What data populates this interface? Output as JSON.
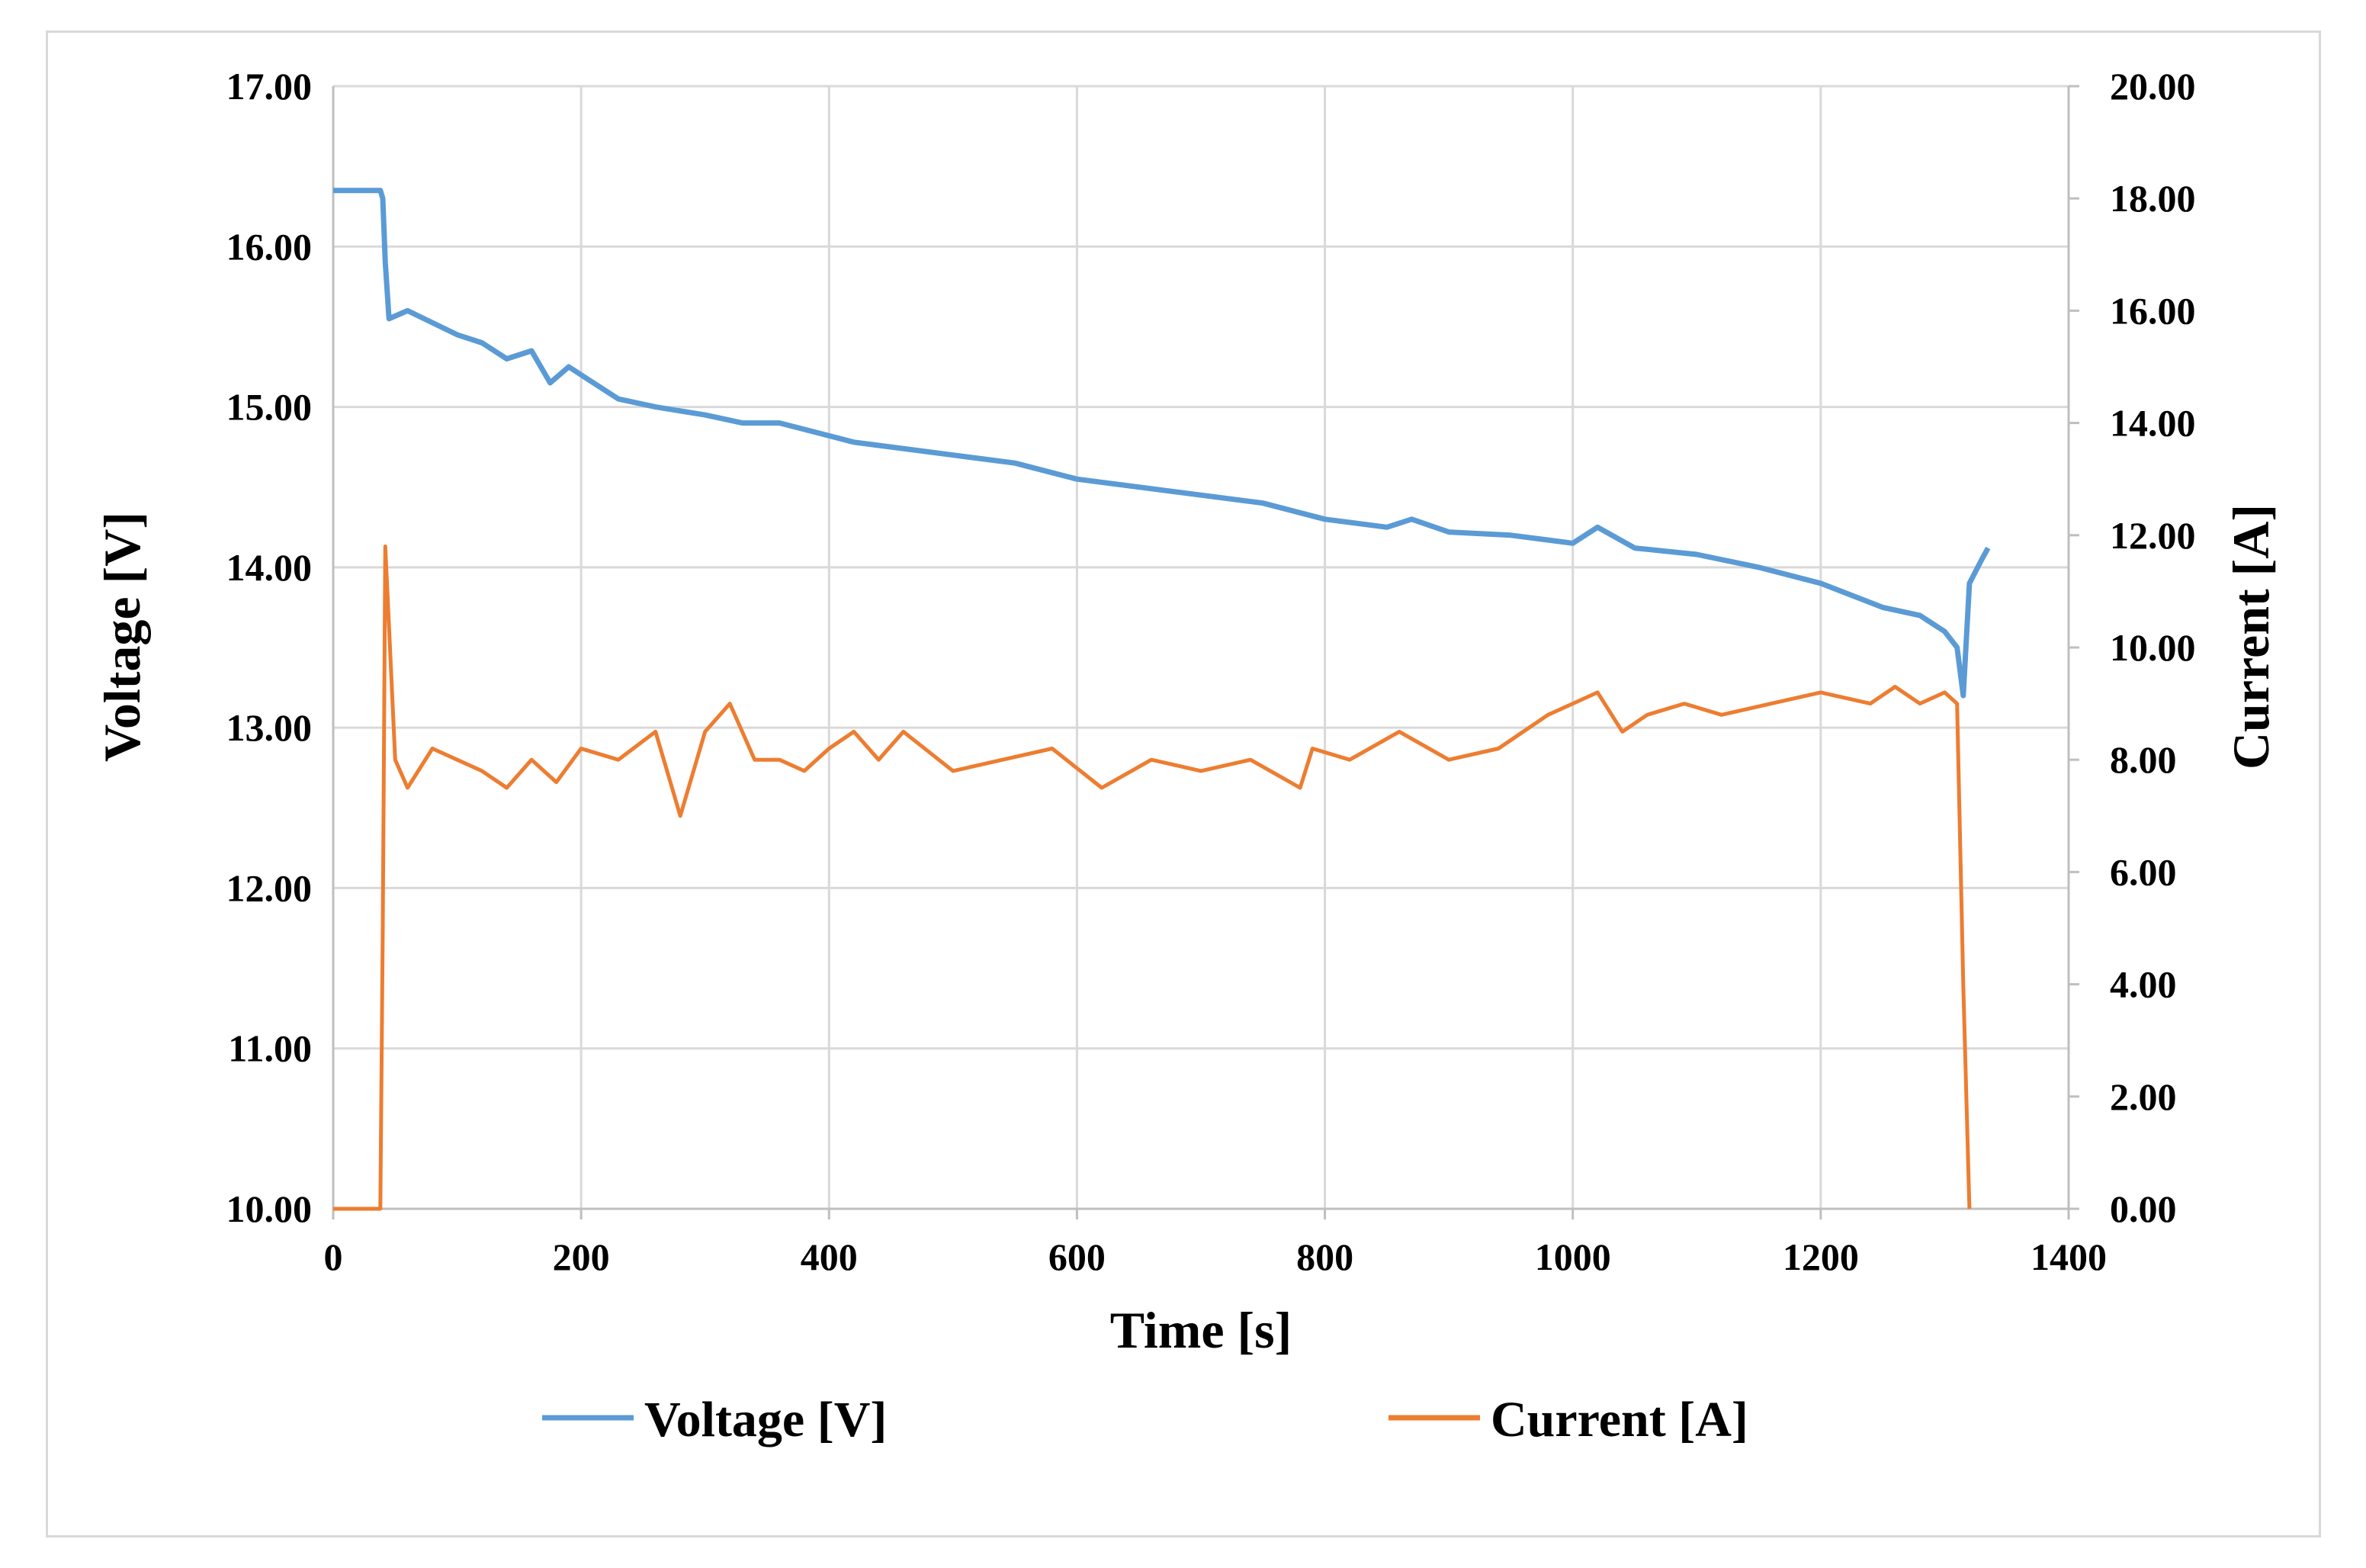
{
  "chart_data": {
    "type": "line",
    "title": "",
    "xlabel": "Time [s]",
    "ylabel_left": "Voltage [V]",
    "ylabel_right": "Current [A]",
    "xlim": [
      0,
      1400
    ],
    "ylim_left": [
      10,
      17
    ],
    "ylim_right": [
      0,
      20
    ],
    "x_ticks": [
      0,
      200,
      400,
      600,
      800,
      1000,
      1200,
      1400
    ],
    "x_tick_labels": [
      "0",
      "200",
      "400",
      "600",
      "800",
      "1000",
      "1200",
      "1400"
    ],
    "y_left_ticks": [
      10,
      11,
      12,
      13,
      14,
      15,
      16,
      17
    ],
    "y_left_tick_labels": [
      "10.00",
      "11.00",
      "12.00",
      "13.00",
      "14.00",
      "15.00",
      "16.00",
      "17.00"
    ],
    "y_right_ticks": [
      0,
      2,
      4,
      6,
      8,
      10,
      12,
      14,
      16,
      18,
      20
    ],
    "y_right_tick_labels": [
      "0.00",
      "2.00",
      "4.00",
      "6.00",
      "8.00",
      "10.00",
      "12.00",
      "14.00",
      "16.00",
      "18.00",
      "20.00"
    ],
    "grid": true,
    "legend_position": "bottom",
    "series": [
      {
        "name": "Voltage [V]",
        "axis": "left",
        "color": "#5B9BD5",
        "x": [
          0,
          38,
          40,
          42,
          45,
          60,
          100,
          120,
          140,
          160,
          175,
          190,
          200,
          230,
          260,
          300,
          330,
          360,
          400,
          420,
          450,
          500,
          550,
          600,
          650,
          700,
          750,
          800,
          850,
          870,
          900,
          950,
          1000,
          1020,
          1050,
          1100,
          1150,
          1200,
          1250,
          1280,
          1300,
          1310,
          1315,
          1320,
          1330,
          1335
        ],
        "values": [
          16.35,
          16.35,
          16.3,
          15.9,
          15.55,
          15.6,
          15.45,
          15.4,
          15.3,
          15.35,
          15.15,
          15.25,
          15.2,
          15.05,
          15.0,
          14.95,
          14.9,
          14.9,
          14.82,
          14.78,
          14.75,
          14.7,
          14.65,
          14.55,
          14.5,
          14.45,
          14.4,
          14.3,
          14.25,
          14.3,
          14.22,
          14.2,
          14.15,
          14.25,
          14.12,
          14.08,
          14.0,
          13.9,
          13.75,
          13.7,
          13.6,
          13.5,
          13.2,
          13.9,
          14.05,
          14.12
        ]
      },
      {
        "name": "Current [A]",
        "axis": "right",
        "color": "#ED7D31",
        "x": [
          0,
          38,
          40,
          42,
          50,
          60,
          80,
          100,
          120,
          140,
          160,
          180,
          200,
          230,
          260,
          280,
          300,
          320,
          340,
          360,
          380,
          400,
          420,
          440,
          460,
          500,
          540,
          580,
          620,
          660,
          700,
          740,
          780,
          790,
          820,
          860,
          900,
          940,
          980,
          1000,
          1020,
          1040,
          1060,
          1090,
          1120,
          1160,
          1200,
          1240,
          1260,
          1280,
          1300,
          1310,
          1315,
          1320
        ],
        "values": [
          0,
          0,
          5.0,
          11.8,
          8.0,
          7.5,
          8.2,
          8.0,
          7.8,
          7.5,
          8.0,
          7.6,
          8.2,
          8.0,
          8.5,
          7.0,
          8.5,
          9.0,
          8.0,
          8.0,
          7.8,
          8.2,
          8.5,
          8.0,
          8.5,
          7.8,
          8.0,
          8.2,
          7.5,
          8.0,
          7.8,
          8.0,
          7.5,
          8.2,
          8.0,
          8.5,
          8.0,
          8.2,
          8.8,
          9.0,
          9.2,
          8.5,
          8.8,
          9.0,
          8.8,
          9.0,
          9.2,
          9.0,
          9.3,
          9.0,
          9.2,
          9.0,
          4.0,
          0
        ]
      }
    ]
  }
}
